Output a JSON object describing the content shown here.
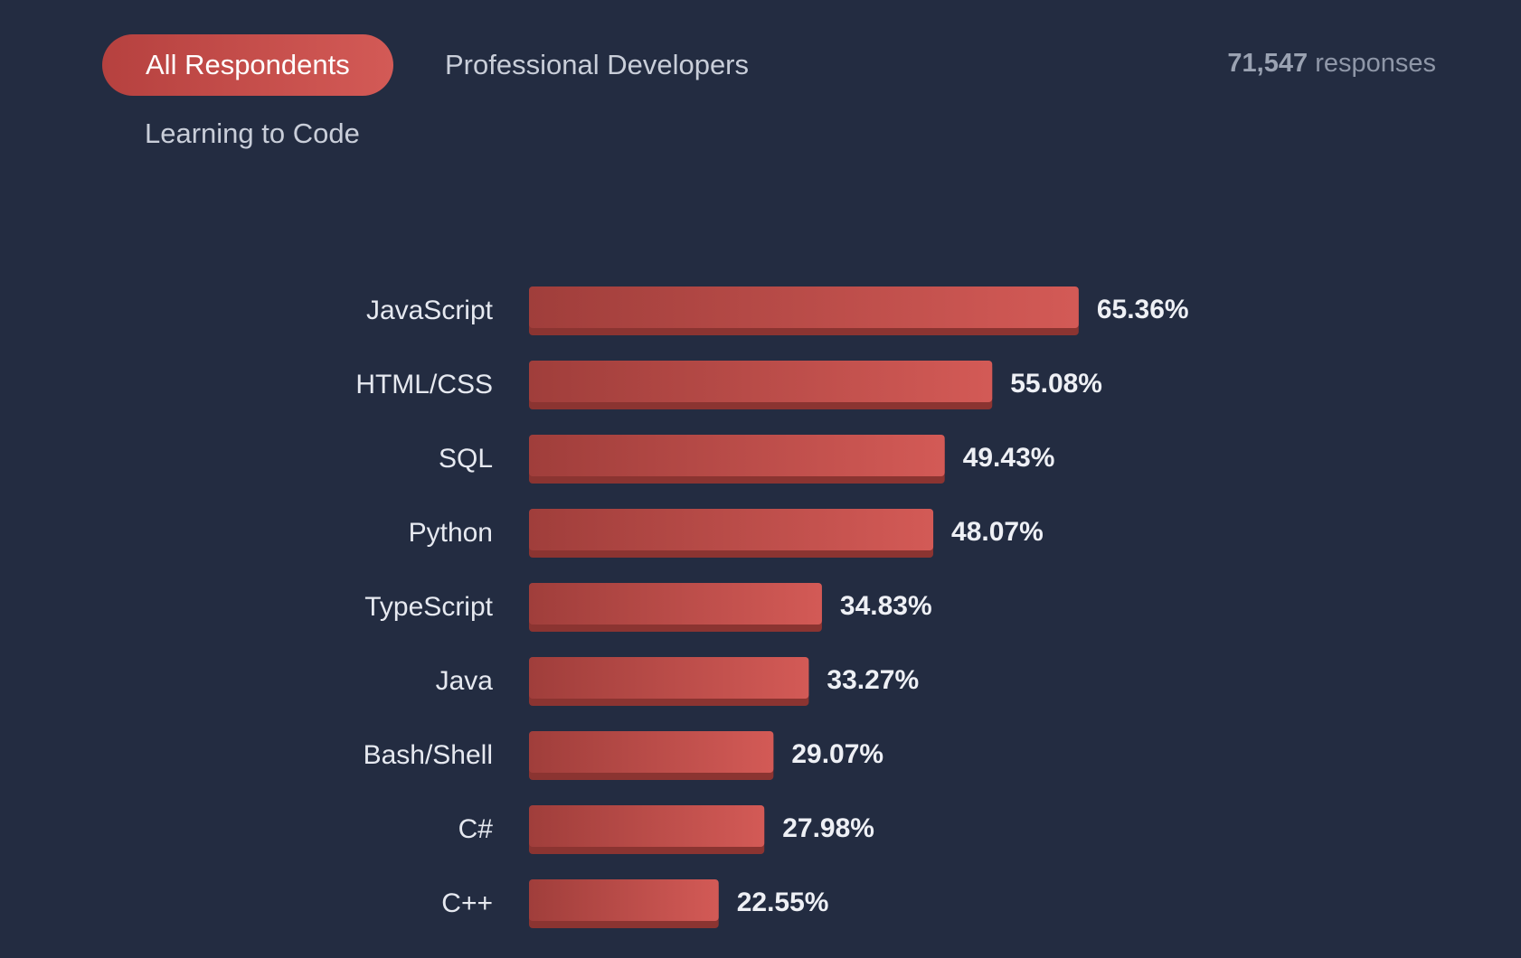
{
  "filters": {
    "tabs": [
      {
        "label": "All Respondents",
        "active": true
      },
      {
        "label": "Professional Developers",
        "active": false
      },
      {
        "label": "Learning to Code",
        "active": false
      }
    ]
  },
  "responses": {
    "count": "71,547",
    "label": "responses"
  },
  "colors": {
    "background": "#232c41",
    "bar_start": "#a03e3b",
    "bar_end": "#d35a56",
    "bar_shadow": "#8b3431",
    "active_tab": "#c44d4a"
  },
  "chart_data": {
    "type": "bar",
    "orientation": "horizontal",
    "categories": [
      "JavaScript",
      "HTML/CSS",
      "SQL",
      "Python",
      "TypeScript",
      "Java",
      "Bash/Shell",
      "C#",
      "C++"
    ],
    "values": [
      65.36,
      55.08,
      49.43,
      48.07,
      34.83,
      33.27,
      29.07,
      27.98,
      22.55
    ],
    "value_labels": [
      "65.36%",
      "55.08%",
      "49.43%",
      "48.07%",
      "34.83%",
      "33.27%",
      "29.07%",
      "27.98%",
      "22.55%"
    ],
    "grid": false,
    "legend": "none"
  }
}
